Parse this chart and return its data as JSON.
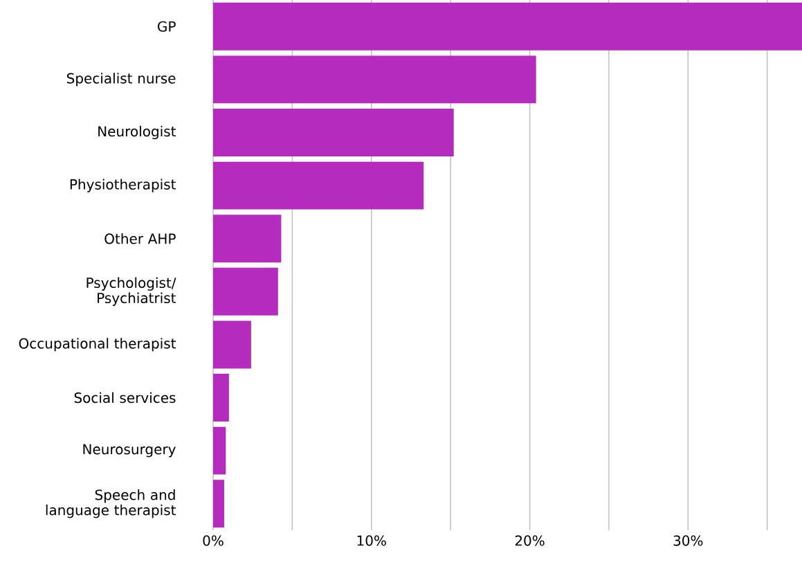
{
  "chart_data": {
    "type": "bar",
    "orientation": "horizontal",
    "categories": [
      "GP",
      "Specialist nurse",
      "Neurologist",
      "Physiotherapist",
      "Other AHP",
      "Psychologist/ Psychiatrist",
      "Occupational therapist",
      "Social services",
      "Neurosurgery",
      "Speech and language therapist"
    ],
    "values": [
      37.2,
      20.4,
      15.2,
      13.3,
      4.3,
      4.1,
      2.4,
      1.0,
      0.8,
      0.7
    ],
    "color": "#b42bbd",
    "xlim": [
      0,
      37.2
    ],
    "xticks": [
      {
        "value": 0,
        "label": "0%"
      },
      {
        "value": 5,
        "label": null
      },
      {
        "value": 10,
        "label": "10%"
      },
      {
        "value": 15,
        "label": null
      },
      {
        "value": 20,
        "label": "20%"
      },
      {
        "value": 25,
        "label": null
      },
      {
        "value": 30,
        "label": "30%"
      },
      {
        "value": 35,
        "label": null
      }
    ],
    "grid": "x"
  }
}
